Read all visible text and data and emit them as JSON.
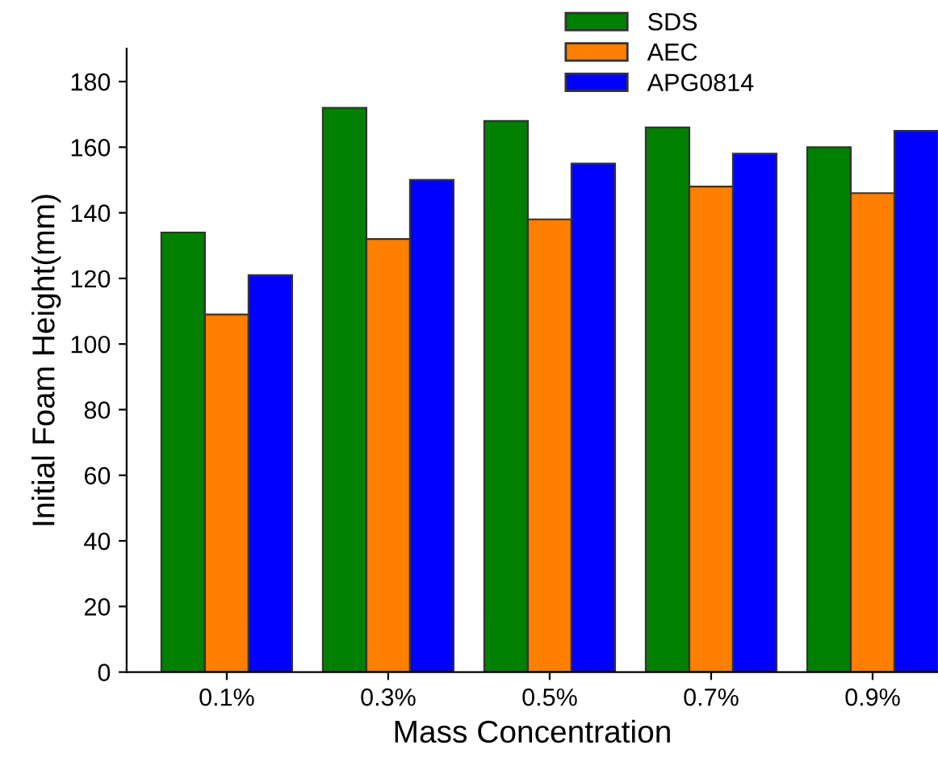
{
  "chart_data": {
    "type": "bar",
    "xlabel": "Mass Concentration",
    "ylabel": "Initial Foam Height(mm)",
    "categories": [
      "0.1%",
      "0.3%",
      "0.5%",
      "0.7%",
      "0.9%"
    ],
    "series": [
      {
        "name": "SDS",
        "color": "#007f00",
        "values": [
          134,
          172,
          168,
          166,
          160
        ]
      },
      {
        "name": "AEC",
        "color": "#ff7f00",
        "values": [
          109,
          132,
          138,
          148,
          146
        ]
      },
      {
        "name": "APG0814",
        "color": "#0000ff",
        "values": [
          121,
          150,
          155,
          158,
          165
        ]
      }
    ],
    "ylim": [
      0,
      190
    ],
    "yticks": [
      0,
      20,
      40,
      60,
      80,
      100,
      120,
      140,
      160,
      180
    ],
    "grid": false,
    "legend": "top right"
  }
}
